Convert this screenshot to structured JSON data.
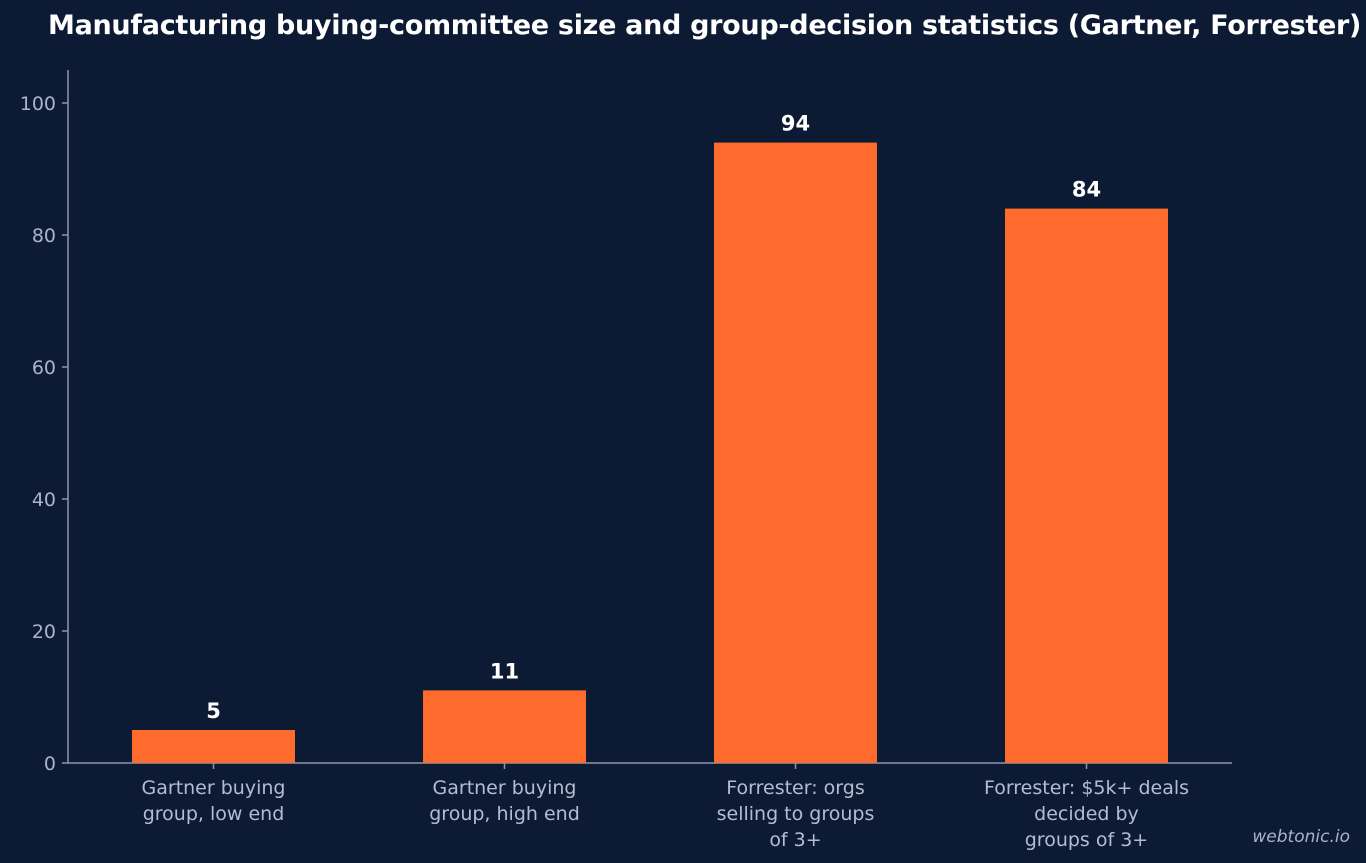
{
  "chart_data": {
    "type": "bar",
    "title": "Manufacturing buying-committee size and group-decision statistics (Gartner, Forrester)",
    "categories": [
      [
        "Gartner buying",
        "group, low end"
      ],
      [
        "Gartner buying",
        "group, high end"
      ],
      [
        "Forrester: orgs",
        "selling to groups",
        "of 3+"
      ],
      [
        "Forrester: $5k+ deals",
        "decided by",
        "groups of 3+"
      ]
    ],
    "values": [
      5,
      11,
      94,
      84
    ],
    "data_labels": [
      "5",
      "11",
      "94",
      "84"
    ],
    "yticks": [
      0,
      20,
      40,
      60,
      80,
      100
    ],
    "ytick_labels": [
      "0",
      "20",
      "40",
      "60",
      "80",
      "100"
    ],
    "ylim": [
      0,
      105
    ],
    "xlabel": "",
    "ylabel": "",
    "grid": false,
    "bar_color": "#ff6b2c",
    "axis_color": "#8a96ad",
    "background_color": "#0c1b33"
  },
  "watermark": "webtonic.io"
}
